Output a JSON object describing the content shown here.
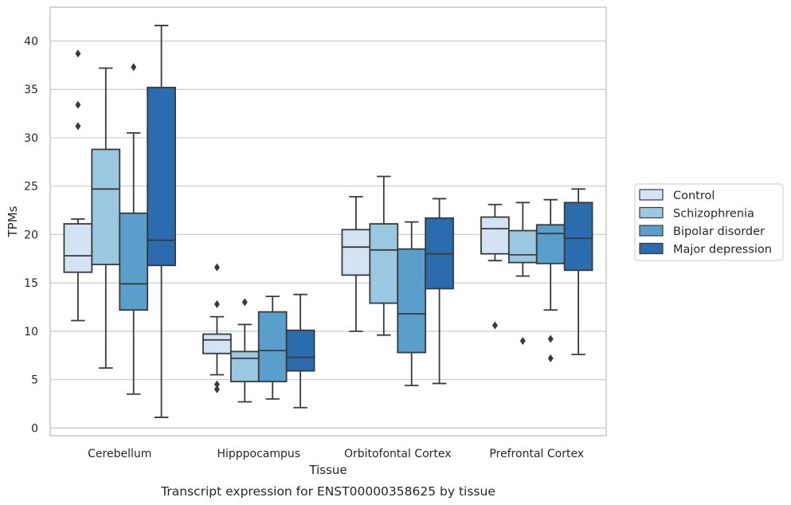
{
  "caption": "Transcript expression for ENST00000358625 by tissue",
  "chart_data": {
    "type": "box",
    "xlabel": "Tissue",
    "ylabel": "TPMs",
    "ylim": [
      -0.8,
      43.5
    ],
    "yticks": [
      0,
      5,
      10,
      15,
      20,
      25,
      30,
      35,
      40
    ],
    "grid": "horizontal",
    "legend_position": "right",
    "categories": [
      "Cerebellum",
      "Hipppocampus",
      "Orbitofontal Cortex",
      "Prefrontal Cortex"
    ],
    "series": [
      {
        "name": "Control",
        "color": "#d3e3f3",
        "boxes": [
          {
            "whislo": 11.1,
            "q1": 16.1,
            "med": 17.8,
            "q3": 21.1,
            "whishi": 21.6,
            "fliers": [
              38.7,
              33.4,
              31.2
            ]
          },
          {
            "whislo": 5.5,
            "q1": 7.7,
            "med": 9.1,
            "q3": 9.7,
            "whishi": 11.5,
            "fliers": [
              16.6,
              12.8,
              4.5,
              4.0
            ]
          },
          {
            "whislo": 10.0,
            "q1": 15.8,
            "med": 18.7,
            "q3": 20.5,
            "whishi": 23.9,
            "fliers": []
          },
          {
            "whislo": 17.3,
            "q1": 18.0,
            "med": 20.6,
            "q3": 21.8,
            "whishi": 23.1,
            "fliers": [
              10.6
            ]
          }
        ]
      },
      {
        "name": "Schizophrenia",
        "color": "#9ac8e0",
        "boxes": [
          {
            "whislo": 6.2,
            "q1": 16.9,
            "med": 24.7,
            "q3": 28.8,
            "whishi": 37.2,
            "fliers": []
          },
          {
            "whislo": 2.7,
            "q1": 4.8,
            "med": 7.2,
            "q3": 7.9,
            "whishi": 10.7,
            "fliers": [
              13.0
            ]
          },
          {
            "whislo": 9.6,
            "q1": 12.9,
            "med": 18.4,
            "q3": 21.1,
            "whishi": 26.0,
            "fliers": []
          },
          {
            "whislo": 15.7,
            "q1": 17.1,
            "med": 17.9,
            "q3": 20.4,
            "whishi": 23.3,
            "fliers": [
              9.0
            ]
          }
        ]
      },
      {
        "name": "Bipolar disorder",
        "color": "#5a9ecc",
        "boxes": [
          {
            "whislo": 3.5,
            "q1": 12.2,
            "med": 14.9,
            "q3": 22.2,
            "whishi": 30.5,
            "fliers": [
              37.3
            ]
          },
          {
            "whislo": 3.0,
            "q1": 4.8,
            "med": 8.0,
            "q3": 12.0,
            "whishi": 13.6,
            "fliers": []
          },
          {
            "whislo": 4.4,
            "q1": 7.8,
            "med": 11.8,
            "q3": 18.5,
            "whishi": 21.3,
            "fliers": []
          },
          {
            "whislo": 12.2,
            "q1": 17.0,
            "med": 20.1,
            "q3": 21.0,
            "whishi": 23.6,
            "fliers": [
              9.2,
              7.2
            ]
          }
        ]
      },
      {
        "name": "Major depression",
        "color": "#2a6cad",
        "boxes": [
          {
            "whislo": 1.1,
            "q1": 16.8,
            "med": 19.4,
            "q3": 35.2,
            "whishi": 41.6,
            "fliers": []
          },
          {
            "whislo": 2.1,
            "q1": 5.9,
            "med": 7.3,
            "q3": 10.1,
            "whishi": 13.8,
            "fliers": []
          },
          {
            "whislo": 4.6,
            "q1": 14.4,
            "med": 18.0,
            "q3": 21.7,
            "whishi": 23.7,
            "fliers": []
          },
          {
            "whislo": 7.6,
            "q1": 16.3,
            "med": 19.6,
            "q3": 23.3,
            "whishi": 24.7,
            "fliers": []
          }
        ]
      }
    ]
  }
}
